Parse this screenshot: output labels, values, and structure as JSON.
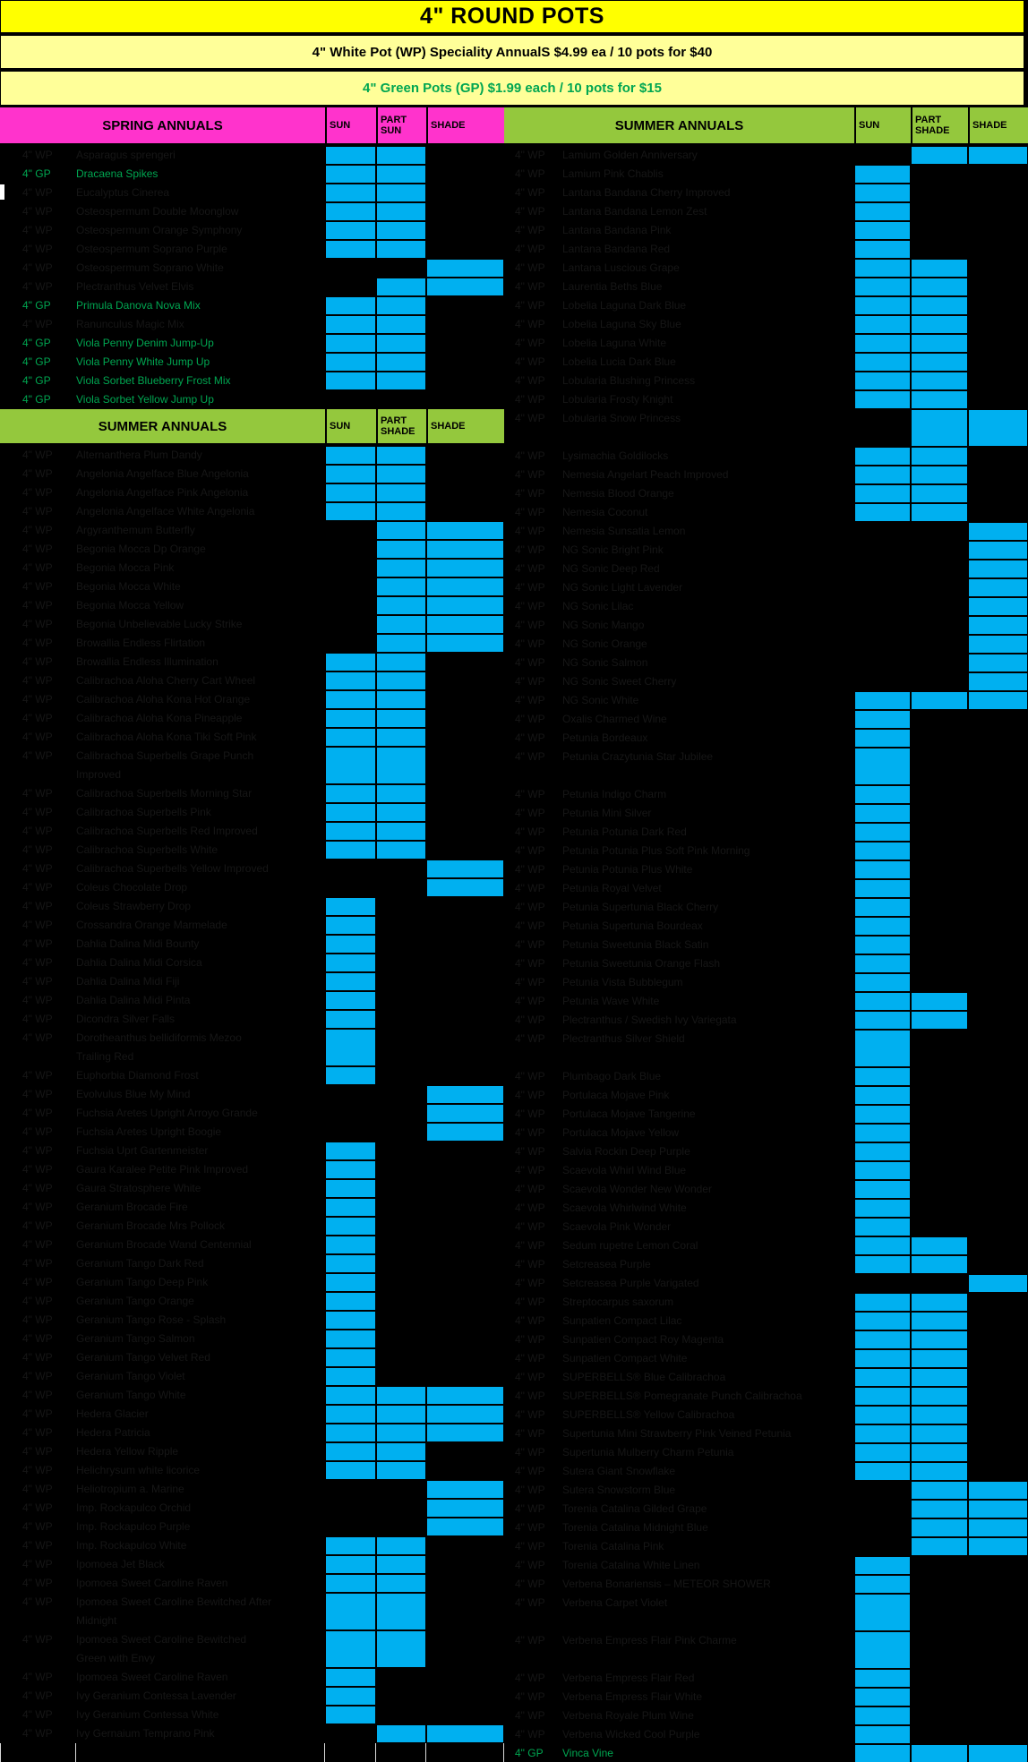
{
  "title": "4\" ROUND POTS",
  "wp_price_line": "4\" White Pot (WP) Speciality AnnualS  $4.99 ea / 10 pots for  $40",
  "gp_price_line": "4\" Green Pots (GP) $1.99 each / 10 pots for $15",
  "colors": {
    "title_bg": "#FFFF00",
    "subtitle_bg": "#FFFF99",
    "spring_header_bg": "#FF33CC",
    "summer_header_bg": "#94C83D",
    "marker_blue": "#00B0F0",
    "green_pot_text": "#00A651",
    "hidden_text": "#161616",
    "background": "#000000"
  },
  "left": {
    "spring_header": {
      "label": "SPRING ANNUALS",
      "cols": [
        "SUN",
        "PART SUN",
        "SHADE"
      ]
    },
    "spring_rows": [
      {
        "pot": "4\" WP",
        "name": "Asparagus sprengeri",
        "m": "sp"
      },
      {
        "pot": "4\" GP",
        "name": "Dracaena Spikes",
        "m": "sp",
        "g": true
      },
      {
        "pot": "4\" WP",
        "name": "Eucalyptus Cinerea",
        "m": "sp"
      },
      {
        "pot": "4\" WP",
        "name": "Osteospermum Double Moonglow",
        "m": "sp"
      },
      {
        "pot": "4\" WP",
        "name": "Osteospermum Orange Symphony",
        "m": "sp"
      },
      {
        "pot": "4\" WP",
        "name": "Osteospermum Soprano Purple",
        "m": "sp"
      },
      {
        "pot": "4\" WP",
        "name": "Osteospermum Soprano White",
        "m": "h"
      },
      {
        "pot": "4\" WP",
        "name": "Plectranthus Velvet Elvis",
        "m": "ph"
      },
      {
        "pot": "4\" GP",
        "name": "Primula Danova Nova Mix",
        "m": "sp",
        "g": true
      },
      {
        "pot": "4\" WP",
        "name": "Ranunculus Magic Mix",
        "m": "sp"
      },
      {
        "pot": "4\" GP",
        "name": "Viola Penny Denim Jump-Up",
        "m": "sp",
        "g": true
      },
      {
        "pot": "4\" GP",
        "name": "Viola Penny White Jump Up",
        "m": "sp",
        "g": true
      },
      {
        "pot": "4\" GP",
        "name": "Viola Sorbet Blueberry Frost Mix",
        "m": "sp",
        "g": true
      },
      {
        "pot": "4\" GP",
        "name": "Viola Sorbet Yellow Jump Up",
        "m": "",
        "g": true
      }
    ],
    "summer_header": {
      "label": "SUMMER ANNUALS",
      "cols": [
        "SUN",
        "PART SHADE",
        "SHADE"
      ]
    },
    "summer_rows": [
      {
        "pot": "4\" WP",
        "name": "Alternanthera Plum Dandy",
        "m": "sp"
      },
      {
        "pot": "4\" WP",
        "name": "Angelonia Angelface Blue Angelonia",
        "m": "sp"
      },
      {
        "pot": "4\" WP",
        "name": "Angelonia Angelface Pink Angelonia",
        "m": "sp"
      },
      {
        "pot": "4\" WP",
        "name": "Angelonia Angelface White Angelonia",
        "m": "sp"
      },
      {
        "pot": "4\" WP",
        "name": "Argyranthemum Butterfly",
        "m": "ph"
      },
      {
        "pot": "4\" WP",
        "name": "Begonia Mocca Dp Orange",
        "m": "ph"
      },
      {
        "pot": "4\" WP",
        "name": "Begonia Mocca Pink",
        "m": "ph"
      },
      {
        "pot": "4\" WP",
        "name": "Begonia Mocca White",
        "m": "ph"
      },
      {
        "pot": "4\" WP",
        "name": "Begonia Mocca Yellow",
        "m": "ph"
      },
      {
        "pot": "4\" WP",
        "name": "Begonia Unbelievable Lucky Strike",
        "m": "ph"
      },
      {
        "pot": "4\" WP",
        "name": "Browallia Endless Flirtation",
        "m": "ph"
      },
      {
        "pot": "4\" WP",
        "name": "Browallia Endless Illumination",
        "m": "sp"
      },
      {
        "pot": "4\" WP",
        "name": "Calibrachoa Aloha Cherry Cart Wheel",
        "m": "sp"
      },
      {
        "pot": "4\" WP",
        "name": "Calibrachoa Aloha Kona Hot Orange",
        "m": "sp"
      },
      {
        "pot": "4\" WP",
        "name": "Calibrachoa Aloha Kona Pineapple",
        "m": "sp"
      },
      {
        "pot": "4\" WP",
        "name": "Calibrachoa Aloha Kona Tiki Soft Pink",
        "m": "sp"
      },
      {
        "pot": "4\" WP",
        "name": "Calibrachoa Superbells Grape Punch\nImproved",
        "m": "sp",
        "h": 2
      },
      {
        "pot": "4\" WP",
        "name": "Calibrachoa Superbells Morning Star",
        "m": "sp"
      },
      {
        "pot": "4\" WP",
        "name": "Calibrachoa Superbells Pink",
        "m": "sp"
      },
      {
        "pot": "4\" WP",
        "name": "Calibrachoa Superbells Red Improved",
        "m": "sp"
      },
      {
        "pot": "4\" WP",
        "name": "Calibrachoa Superbells White",
        "m": "sp"
      },
      {
        "pot": "4\" WP",
        "name": "Calibrachoa Superbells Yellow Improved",
        "m": "h"
      },
      {
        "pot": "4\" WP",
        "name": "Coleus Chocolate Drop",
        "m": "h"
      },
      {
        "pot": "4\" WP",
        "name": "Coleus Strawberry Drop",
        "m": "s"
      },
      {
        "pot": "4\" WP",
        "name": "Crossandra Orange Marmelade",
        "m": "s"
      },
      {
        "pot": "4\" WP",
        "name": "Dahlia Dalina Midi Bounty",
        "m": "s"
      },
      {
        "pot": "4\" WP",
        "name": "Dahlia Dalina Midi Corsica",
        "m": "s"
      },
      {
        "pot": "4\" WP",
        "name": "Dahlia Dalina Midi Fiji",
        "m": "s"
      },
      {
        "pot": "4\" WP",
        "name": "Dahlia Dalina Midi Pinta",
        "m": "s"
      },
      {
        "pot": "4\" WP",
        "name": "Dicondra Silver Falls",
        "m": "s"
      },
      {
        "pot": "4\" WP",
        "name": "Dorotheanthus bellidiformis Mezoo\nTrailing Red",
        "m": "s",
        "h": 2
      },
      {
        "pot": "4\" WP",
        "name": "Euphorbia Diamond Frost",
        "m": "s"
      },
      {
        "pot": "4\" WP",
        "name": "Evolvulus Blue My Mind",
        "m": "h"
      },
      {
        "pot": "4\" WP",
        "name": "Fuchsia Aretes Upright Arroyo Grande",
        "m": "h"
      },
      {
        "pot": "4\" WP",
        "name": "Fuchsia Aretes Upright Boogie",
        "m": "h"
      },
      {
        "pot": "4\" WP",
        "name": "Fuchsia Uprt Gartenmeister",
        "m": "s"
      },
      {
        "pot": "4\" WP",
        "name": "Gaura Karalee Petite Pink Improved",
        "m": "s"
      },
      {
        "pot": "4\" WP",
        "name": "Gaura Stratosphere White",
        "m": "s"
      },
      {
        "pot": "4\" WP",
        "name": "Geranium Brocade Fire",
        "m": "s"
      },
      {
        "pot": "4\" WP",
        "name": "Geranium Brocade Mrs Pollock",
        "m": "s"
      },
      {
        "pot": "4\" WP",
        "name": "Geranium Brocade Wand Centennial",
        "m": "s"
      },
      {
        "pot": "4\" WP",
        "name": "Geranium Tango Dark Red",
        "m": "s"
      },
      {
        "pot": "4\" WP",
        "name": "Geranium Tango Deep Pink",
        "m": "s"
      },
      {
        "pot": "4\" WP",
        "name": "Geranium Tango Orange",
        "m": "s"
      },
      {
        "pot": "4\" WP",
        "name": "Geranium Tango Rose - Splash",
        "m": "s"
      },
      {
        "pot": "4\" WP",
        "name": "Geranium Tango Salmon",
        "m": "s"
      },
      {
        "pot": "4\" WP",
        "name": "Geranium Tango Velvet Red",
        "m": "s"
      },
      {
        "pot": "4\" WP",
        "name": "Geranium Tango Violet",
        "m": "s"
      },
      {
        "pot": "4\" WP",
        "name": "Geranium Tango White",
        "m": "sph"
      },
      {
        "pot": "4\" WP",
        "name": "Hedera Glacier",
        "m": "sph"
      },
      {
        "pot": "4\" WP",
        "name": "Hedera Patricia",
        "m": "sph"
      },
      {
        "pot": "4\" WP",
        "name": "Hedera Yellow Ripple",
        "m": "sp"
      },
      {
        "pot": "4\" WP",
        "name": "Helichrysum white licorice",
        "m": "sp"
      },
      {
        "pot": "4\" WP",
        "name": "Heliotropium a. Marine",
        "m": "h"
      },
      {
        "pot": "4\" WP",
        "name": "Imp. Rockapulco Orchid",
        "m": "h"
      },
      {
        "pot": "4\" WP",
        "name": "Imp. Rockapulco Purple",
        "m": "h"
      },
      {
        "pot": "4\" WP",
        "name": "Imp. Rockapulco White",
        "m": "sp"
      },
      {
        "pot": "4\" WP",
        "name": "Ipomoea Jet Black",
        "m": "sp"
      },
      {
        "pot": "4\" WP",
        "name": "Ipomoea Sweet Caroline Raven",
        "m": "sp"
      },
      {
        "pot": "4\" WP",
        "name": "Ipomoea Sweet Caroline Bewitched After\nMidnight",
        "m": "sp",
        "h": 2
      },
      {
        "pot": "4\" WP",
        "name": "Ipomoea Sweet Caroline Bewitched\nGreen with Envy",
        "m": "sp",
        "h": 2
      },
      {
        "pot": "4\" WP",
        "name": "Ipomoea Sweet Caroline Raven",
        "m": "s"
      },
      {
        "pot": "4\" WP",
        "name": "Ivy Geranium Contessa Lavender",
        "m": "s"
      },
      {
        "pot": "4\" WP",
        "name": "Ivy Geranium Contessa White",
        "m": "s"
      },
      {
        "pot": "4\" WP",
        "name": "Ivy Gernaium Temprano Pink",
        "m": "ph"
      },
      {
        "pot": "",
        "name": "",
        "m": "",
        "end": true
      }
    ]
  },
  "right": {
    "header": {
      "label": "SUMMER ANNUALS",
      "cols": [
        "SUN",
        "PART SHADE",
        "SHADE"
      ]
    },
    "rows": [
      {
        "pot": "4\" WP",
        "name": "Lamium Golden Anniversary",
        "m": "ph"
      },
      {
        "pot": "4\" WP",
        "name": "Lamium Pink Chablis",
        "m": "s"
      },
      {
        "pot": "4\" WP",
        "name": "Lantana Bandana Cherry Improved",
        "m": "s"
      },
      {
        "pot": "4\" WP",
        "name": "Lantana Bandana Lemon Zest",
        "m": "s"
      },
      {
        "pot": "4\" WP",
        "name": "Lantana Bandana Pink",
        "m": "s"
      },
      {
        "pot": "4\" WP",
        "name": "Lantana Bandana Red",
        "m": "s"
      },
      {
        "pot": "4\" WP",
        "name": "Lantana Luscious Grape",
        "m": "sp"
      },
      {
        "pot": "4\" WP",
        "name": "Laurentia Beths Blue",
        "m": "sp"
      },
      {
        "pot": "4\" WP",
        "name": "Lobelia Laguna Dark Blue",
        "m": "sp"
      },
      {
        "pot": "4\" WP",
        "name": "Lobelia Laguna Sky Blue",
        "m": "sp"
      },
      {
        "pot": "4\" WP",
        "name": "Lobelia Laguna White",
        "m": "sp"
      },
      {
        "pot": "4\" WP",
        "name": "Lobelia Lucia Dark Blue",
        "m": "sp"
      },
      {
        "pot": "4\" WP",
        "name": "Lobularia Blushing Princess",
        "m": "sp"
      },
      {
        "pot": "4\" WP",
        "name": "Lobularia Frosty Knight",
        "m": "sp"
      },
      {
        "pot": "4\" WP",
        "name": "Lobularia Snow Princess",
        "m": "ph",
        "h": 2
      },
      {
        "pot": "4\" WP",
        "name": "Lysimachia Goldilocks",
        "m": "sp"
      },
      {
        "pot": "4\" WP",
        "name": "Nemesia Angelart Peach Improved",
        "m": "sp"
      },
      {
        "pot": "4\" WP",
        "name": "Nemesia Blood Orange",
        "m": "sp"
      },
      {
        "pot": "4\" WP",
        "name": "Nemesia Coconut",
        "m": "sp"
      },
      {
        "pot": "4\" WP",
        "name": "Nemesia Sunsatia Lemon",
        "m": "h"
      },
      {
        "pot": "4\" WP",
        "name": "NG Sonic Bright Pink",
        "m": "h"
      },
      {
        "pot": "4\" WP",
        "name": "NG Sonic Deep Red",
        "m": "h"
      },
      {
        "pot": "4\" WP",
        "name": "NG Sonic Light Lavender",
        "m": "h"
      },
      {
        "pot": "4\" WP",
        "name": "NG Sonic Lilac",
        "m": "h"
      },
      {
        "pot": "4\" WP",
        "name": "NG Sonic Mango",
        "m": "h"
      },
      {
        "pot": "4\" WP",
        "name": "NG Sonic Orange",
        "m": "h"
      },
      {
        "pot": "4\" WP",
        "name": "NG Sonic Salmon",
        "m": "h"
      },
      {
        "pot": "4\" WP",
        "name": "NG Sonic Sweet Cherry",
        "m": "h"
      },
      {
        "pot": "4\" WP",
        "name": "NG Sonic White",
        "m": "sph"
      },
      {
        "pot": "4\" WP",
        "name": "Oxalis Charmed Wine",
        "m": "s"
      },
      {
        "pot": "4\" WP",
        "name": "Petunia Bordeaux",
        "m": "s"
      },
      {
        "pot": "4\" WP",
        "name": "Petunia Crazytunia Star Jubilee",
        "m": "s",
        "h": 2
      },
      {
        "pot": "4\" WP",
        "name": "Petunia Indigo Charm",
        "m": "s"
      },
      {
        "pot": "4\" WP",
        "name": "Petunia Mini Silver",
        "m": "s"
      },
      {
        "pot": "4\" WP",
        "name": "Petunia Potunia Dark Red",
        "m": "s"
      },
      {
        "pot": "4\" WP",
        "name": "Petunia Potunia Plus Soft Pink Morning",
        "m": "s"
      },
      {
        "pot": "4\" WP",
        "name": "Petunia Potunia Plus White",
        "m": "s"
      },
      {
        "pot": "4\" WP",
        "name": "Petunia Royal Velvet",
        "m": "s"
      },
      {
        "pot": "4\" WP",
        "name": "Petunia Supertunia Black Cherry",
        "m": "s"
      },
      {
        "pot": "4\" WP",
        "name": "Petunia Supertunia Bourdeax",
        "m": "s"
      },
      {
        "pot": "4\" WP",
        "name": "Petunia Sweetunia Black Satin",
        "m": "s"
      },
      {
        "pot": "4\" WP",
        "name": "Petunia Sweetunia Orange Flash",
        "m": "s"
      },
      {
        "pot": "4\" WP",
        "name": "Petunia Vista Bubblegum",
        "m": "s"
      },
      {
        "pot": "4\" WP",
        "name": "Petunia Wave White",
        "m": "sp"
      },
      {
        "pot": "4\" WP",
        "name": "Plectranthus / Swedish Ivy Variegata",
        "m": "sp"
      },
      {
        "pot": "4\" WP",
        "name": "Plectranthus Silver Shield",
        "m": "s",
        "h": 2
      },
      {
        "pot": "4\" WP",
        "name": "Plumbago Dark Blue",
        "m": "s"
      },
      {
        "pot": "4\" WP",
        "name": "Portulaca Mojave Pink",
        "m": "s"
      },
      {
        "pot": "4\" WP",
        "name": "Portulaca Mojave Tangerine",
        "m": "s"
      },
      {
        "pot": "4\" WP",
        "name": "Portulaca Mojave Yellow",
        "m": "s"
      },
      {
        "pot": "4\" WP",
        "name": "Salvia Rockin Deep Purple",
        "m": "s"
      },
      {
        "pot": "4\" WP",
        "name": "Scaevola  Whirl Wind Blue",
        "m": "s"
      },
      {
        "pot": "4\" WP",
        "name": "Scaevola  Wonder New Wonder",
        "m": "s"
      },
      {
        "pot": "4\" WP",
        "name": "Scaevola Whirlwind White",
        "m": "s"
      },
      {
        "pot": "4\" WP",
        "name": "Scaevola Pink Wonder",
        "m": "s"
      },
      {
        "pot": "4\" WP",
        "name": "Sedum rupetre Lemon Coral",
        "m": "sp"
      },
      {
        "pot": "4\" WP",
        "name": "Setcreasea Purple",
        "m": "sp"
      },
      {
        "pot": "4\" WP",
        "name": "Setcreasea Purple Varigated",
        "m": "h"
      },
      {
        "pot": "4\" WP",
        "name": "Streptocarpus saxorum",
        "m": "sp"
      },
      {
        "pot": "4\" WP",
        "name": "Sunpatien Compact Lilac",
        "m": "sp"
      },
      {
        "pot": "4\" WP",
        "name": "Sunpatien Compact Roy Magenta",
        "m": "sp"
      },
      {
        "pot": "4\" WP",
        "name": "Sunpatien Compact White",
        "m": "sp"
      },
      {
        "pot": "4\" WP",
        "name": "SUPERBELLS® Blue Calibrachoa",
        "m": "sp"
      },
      {
        "pot": "4\" WP",
        "name": "SUPERBELLS® Pomegranate Punch Calibrachoa",
        "m": "sp"
      },
      {
        "pot": "4\" WP",
        "name": "SUPERBELLS® Yellow Calibrachoa",
        "m": "sp"
      },
      {
        "pot": "4\" WP",
        "name": "Supertunia Mini Strawberry Pink Veined Petunia",
        "m": "sp"
      },
      {
        "pot": "4\" WP",
        "name": "Supertunia Mulberry Charm Petunia",
        "m": "sp"
      },
      {
        "pot": "4\" WP",
        "name": "Sutera Giant Snowflake",
        "m": "sp"
      },
      {
        "pot": "4\" WP",
        "name": "Sutera Snowstorm Blue",
        "m": "ph"
      },
      {
        "pot": "4\" WP",
        "name": "Torenia Catalina Gilded Grape",
        "m": "ph"
      },
      {
        "pot": "4\" WP",
        "name": "Torenia Catalina Midnight Blue",
        "m": "ph"
      },
      {
        "pot": "4\" WP",
        "name": "Torenia Catalina Pink",
        "m": "ph"
      },
      {
        "pot": "4\" WP",
        "name": "Torenia Catalina White Linen",
        "m": "s"
      },
      {
        "pot": "4\" WP",
        "name": "Verbena Bonariensis – METEOR SHOWER",
        "m": "s"
      },
      {
        "pot": "4\" WP",
        "name": "Verbena Carpet Violet",
        "m": "s",
        "h": 2
      },
      {
        "pot": "4\" WP",
        "name": "Verbena Empress Flair Pink Charme",
        "m": "s",
        "h": 2
      },
      {
        "pot": "4\" WP",
        "name": "Verbena Empress Flair Red",
        "m": "s"
      },
      {
        "pot": "4\" WP",
        "name": "Verbena Empress Flair White",
        "m": "s"
      },
      {
        "pot": "4\" WP",
        "name": "Verbena Royale Plum Wine",
        "m": "s"
      },
      {
        "pot": "4\" WP",
        "name": "Verbena Wicked Cool Purple",
        "m": "s"
      },
      {
        "pot": "4\" GP",
        "name": "Vinca Vine",
        "m": "sph",
        "g": true
      }
    ]
  }
}
